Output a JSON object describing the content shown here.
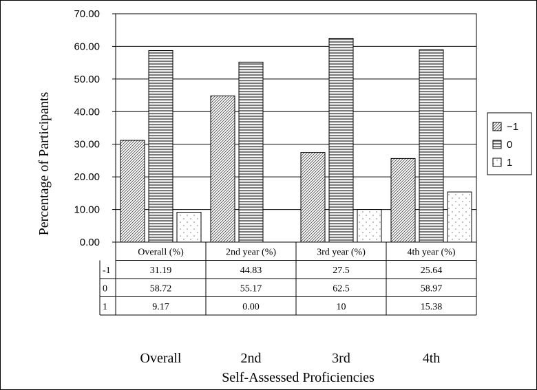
{
  "chart_data": {
    "type": "bar",
    "title": "",
    "xlabel": "Self-Assessed  Proficiencies",
    "ylabel": "Percentage of  Participants",
    "ylim": [
      0,
      70
    ],
    "yticks": [
      "0.00",
      "10.00",
      "20.00",
      "30.00",
      "40.00",
      "50.00",
      "60.00",
      "70.00"
    ],
    "grid": true,
    "legend_position": "right",
    "categories": [
      "Overall (%)",
      "2nd year (%)",
      "3rd year (%)",
      "4th year (%)"
    ],
    "x_group_labels": [
      "Overall",
      "2nd",
      "3rd",
      "4th"
    ],
    "series": [
      {
        "name": "-1",
        "legend_label": "−1",
        "pattern": "diagonal",
        "values": [
          31.19,
          44.83,
          27.5,
          25.64
        ],
        "table_values": [
          "31.19",
          "44.83",
          "27.5",
          "25.64"
        ]
      },
      {
        "name": "0",
        "legend_label": "0",
        "pattern": "horizontal",
        "values": [
          58.72,
          55.17,
          62.5,
          58.97
        ],
        "table_values": [
          "58.72",
          "55.17",
          "62.5",
          "58.97"
        ]
      },
      {
        "name": "1",
        "legend_label": "1",
        "pattern": "dots",
        "values": [
          9.17,
          0.0,
          10,
          15.38
        ],
        "table_values": [
          "9.17",
          "0.00",
          "10",
          "15.38"
        ]
      }
    ]
  }
}
